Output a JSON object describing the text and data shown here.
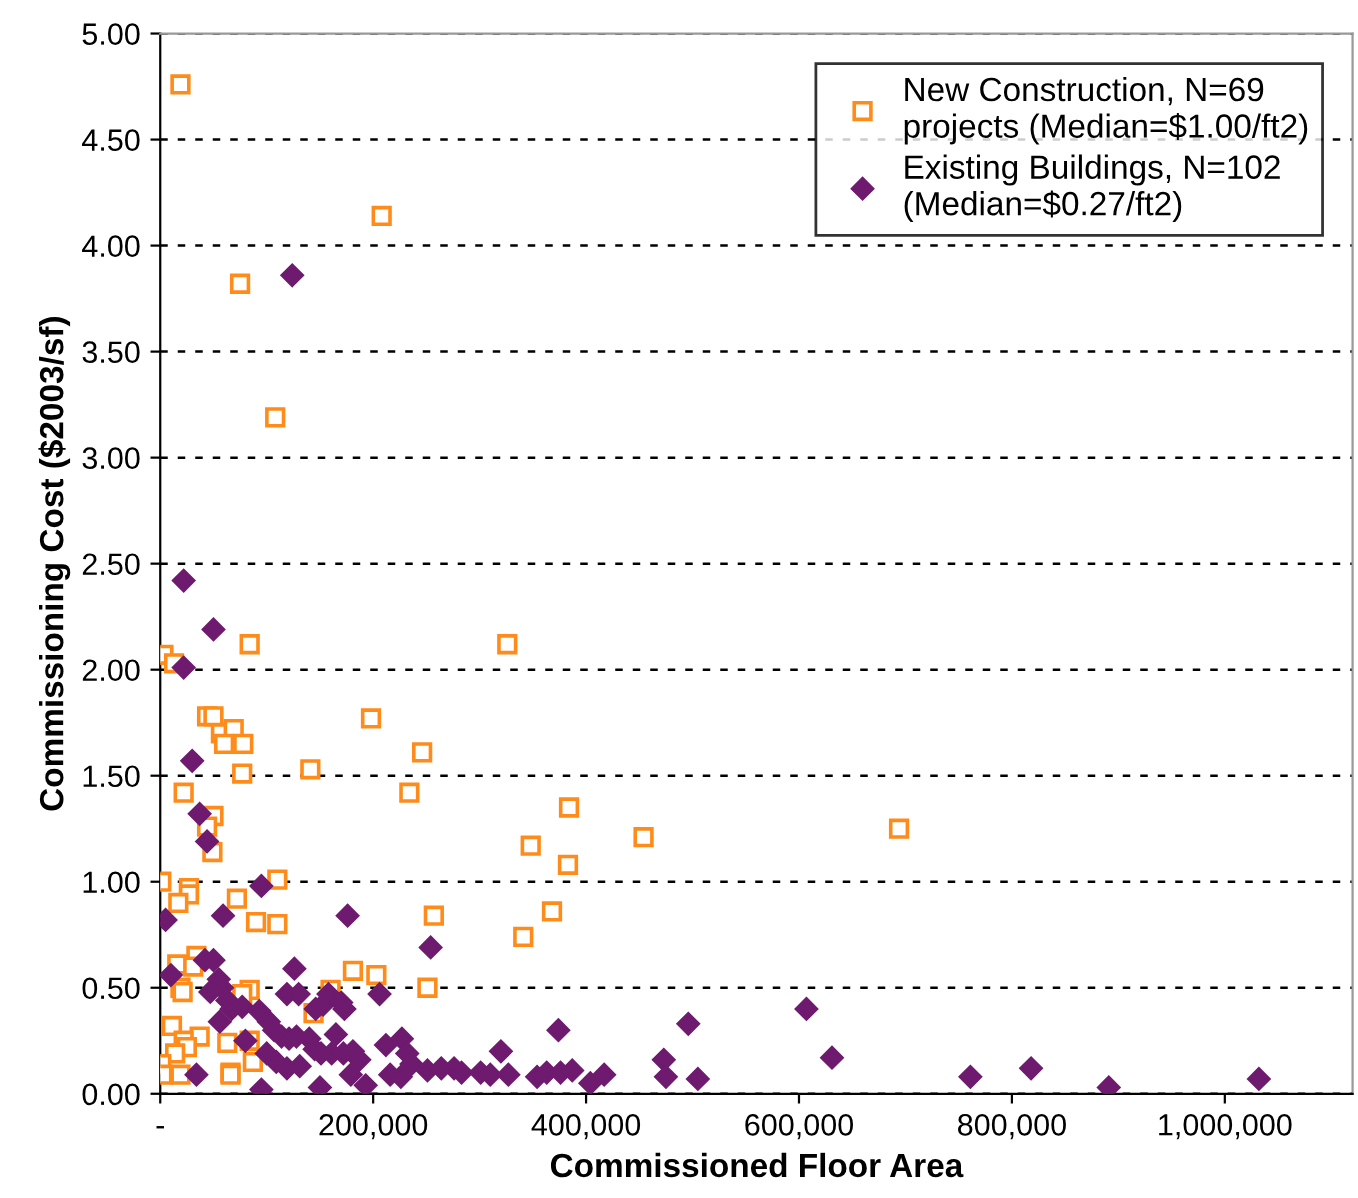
{
  "chart_data": {
    "type": "scatter",
    "xlabel": "Commissioned Floor Area",
    "ylabel": "Commissioning Cost ($2003/sf)",
    "xlim": [
      0,
      1120000
    ],
    "xticks": [
      {
        "value": 0,
        "label": "-"
      },
      {
        "value": 200000,
        "label": "200,000"
      },
      {
        "value": 400000,
        "label": "400,000"
      },
      {
        "value": 600000,
        "label": "600,000"
      },
      {
        "value": 800000,
        "label": "800,000"
      },
      {
        "value": 1000000,
        "label": "1,000,000"
      }
    ],
    "ylim": [
      0,
      5
    ],
    "yticks": [
      {
        "value": 0,
        "label": "0.00"
      },
      {
        "value": 0.5,
        "label": "0.50"
      },
      {
        "value": 1,
        "label": "1.00"
      },
      {
        "value": 1.5,
        "label": "1.50"
      },
      {
        "value": 2,
        "label": "2.00"
      },
      {
        "value": 2.5,
        "label": "2.50"
      },
      {
        "value": 3,
        "label": "3.00"
      },
      {
        "value": 3.5,
        "label": "3.50"
      },
      {
        "value": 4,
        "label": "4.00"
      },
      {
        "value": 4.5,
        "label": "4.50"
      },
      {
        "value": 5,
        "label": "5.00"
      }
    ],
    "grid": "y",
    "legend": "top right",
    "series": [
      {
        "name": "New Construction, N=69\nprojects (Median=$1.00/ft2)",
        "color": "#ff8c1a",
        "marker": "square",
        "x": [
          19000,
          208000,
          75000,
          108000,
          84000,
          326000,
          3000,
          13000,
          44000,
          50000,
          57000,
          69000,
          60000,
          78000,
          77000,
          141000,
          198000,
          246000,
          234000,
          22000,
          50000,
          44000,
          49000,
          1000,
          27000,
          27000,
          17000,
          72000,
          110000,
          90000,
          110000,
          257000,
          34000,
          16000,
          31000,
          19000,
          21000,
          84000,
          77000,
          160000,
          181000,
          203000,
          251000,
          144000,
          11000,
          37000,
          22000,
          25000,
          14000,
          63000,
          84000,
          87000,
          1000,
          2000,
          19000,
          66000,
          66000,
          341000,
          368000,
          383000,
          384000,
          348000,
          454000,
          694000
        ],
        "values": [
          4.76,
          4.14,
          3.82,
          3.19,
          2.12,
          2.12,
          2.07,
          2.03,
          1.78,
          1.78,
          1.7,
          1.72,
          1.65,
          1.65,
          1.51,
          1.53,
          1.77,
          1.61,
          1.42,
          1.42,
          1.31,
          1.26,
          1.14,
          1.0,
          0.97,
          0.94,
          0.9,
          0.92,
          1.01,
          0.81,
          0.8,
          0.84,
          0.65,
          0.61,
          0.6,
          0.5,
          0.48,
          0.49,
          0.47,
          0.49,
          0.58,
          0.56,
          0.5,
          0.38,
          0.32,
          0.27,
          0.25,
          0.22,
          0.19,
          0.24,
          0.25,
          0.15,
          0.14,
          0.09,
          0.09,
          0.1,
          0.09,
          0.74,
          0.86,
          1.08,
          1.35,
          1.17,
          1.21,
          1.25
        ]
      },
      {
        "name": "Existing Buildings, N=102\n(Median=$0.27/ft2)",
        "color": "#6e1a6e",
        "marker": "diamond",
        "x": [
          124000,
          22000,
          50000,
          22000,
          30000,
          37000,
          44000,
          5000,
          59000,
          95000,
          176000,
          254000,
          10000,
          42000,
          50000,
          55000,
          47000,
          58000,
          63000,
          67000,
          77000,
          93000,
          56000,
          126000,
          119000,
          130000,
          146000,
          153000,
          158000,
          170000,
          173000,
          206000,
          102000,
          107000,
          114000,
          121000,
          128000,
          140000,
          80000,
          145000,
          151000,
          161000,
          165000,
          172000,
          181000,
          187000,
          100000,
          109000,
          119000,
          131000,
          34000,
          95000,
          150000,
          179000,
          193000,
          212000,
          216000,
          226000,
          227000,
          232000,
          236000,
          251000,
          264000,
          276000,
          283000,
          301000,
          310000,
          320000,
          327000,
          354000,
          363000,
          374000,
          376000,
          387000,
          404000,
          417000,
          496000,
          473000,
          475000,
          505000,
          607000,
          631000,
          761000,
          818000,
          891000,
          1032000
        ],
        "values": [
          3.86,
          2.42,
          2.19,
          2.01,
          1.57,
          1.32,
          1.19,
          0.82,
          0.84,
          0.98,
          0.84,
          0.69,
          0.56,
          0.63,
          0.63,
          0.54,
          0.48,
          0.5,
          0.44,
          0.4,
          0.41,
          0.39,
          0.34,
          0.59,
          0.47,
          0.47,
          0.4,
          0.42,
          0.47,
          0.43,
          0.4,
          0.47,
          0.34,
          0.3,
          0.27,
          0.26,
          0.27,
          0.26,
          0.25,
          0.21,
          0.19,
          0.19,
          0.28,
          0.19,
          0.2,
          0.16,
          0.19,
          0.15,
          0.12,
          0.13,
          0.09,
          0.02,
          0.03,
          0.09,
          0.04,
          0.23,
          0.09,
          0.08,
          0.26,
          0.19,
          0.14,
          0.11,
          0.12,
          0.12,
          0.1,
          0.1,
          0.09,
          0.2,
          0.09,
          0.08,
          0.1,
          0.3,
          0.1,
          0.11,
          0.05,
          0.09,
          0.33,
          0.16,
          0.08,
          0.07,
          0.4,
          0.17,
          0.08,
          0.12,
          0.03,
          0.07
        ]
      }
    ]
  }
}
